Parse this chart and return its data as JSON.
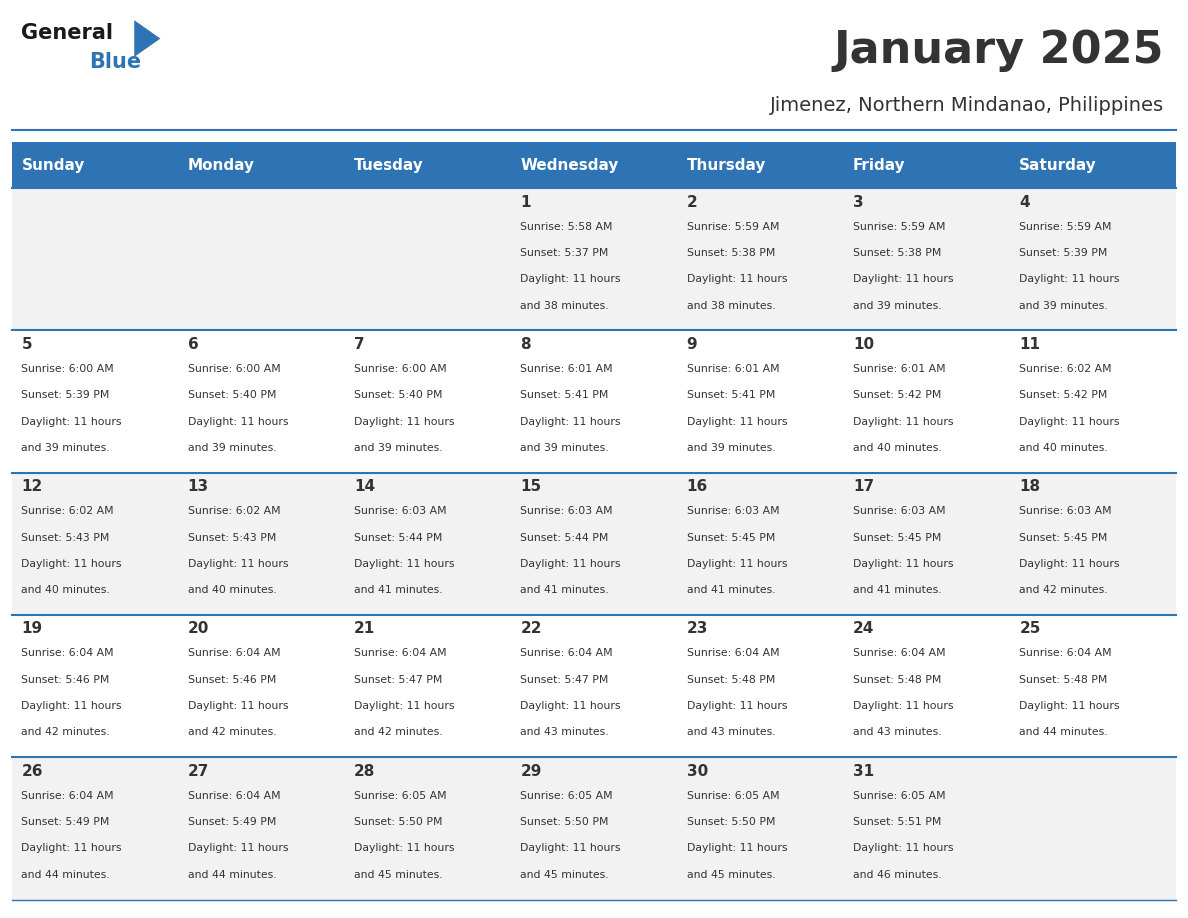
{
  "title": "January 2025",
  "subtitle": "Jimenez, Northern Mindanao, Philippines",
  "header_bg": "#2E74B5",
  "header_text_color": "#FFFFFF",
  "day_names": [
    "Sunday",
    "Monday",
    "Tuesday",
    "Wednesday",
    "Thursday",
    "Friday",
    "Saturday"
  ],
  "row_bg_even": "#F2F2F2",
  "row_bg_odd": "#FFFFFF",
  "cell_border_color": "#2E74B5",
  "day_num_color": "#333333",
  "info_color": "#333333",
  "logo_general_color": "#1a1a1a",
  "logo_blue_color": "#2E74B5",
  "calendar": [
    [
      null,
      null,
      null,
      {
        "day": 1,
        "sunrise": "5:58 AM",
        "sunset": "5:37 PM",
        "daylight": "11 hours and 38 minutes"
      },
      {
        "day": 2,
        "sunrise": "5:59 AM",
        "sunset": "5:38 PM",
        "daylight": "11 hours and 38 minutes"
      },
      {
        "day": 3,
        "sunrise": "5:59 AM",
        "sunset": "5:38 PM",
        "daylight": "11 hours and 39 minutes"
      },
      {
        "day": 4,
        "sunrise": "5:59 AM",
        "sunset": "5:39 PM",
        "daylight": "11 hours and 39 minutes"
      }
    ],
    [
      {
        "day": 5,
        "sunrise": "6:00 AM",
        "sunset": "5:39 PM",
        "daylight": "11 hours and 39 minutes"
      },
      {
        "day": 6,
        "sunrise": "6:00 AM",
        "sunset": "5:40 PM",
        "daylight": "11 hours and 39 minutes"
      },
      {
        "day": 7,
        "sunrise": "6:00 AM",
        "sunset": "5:40 PM",
        "daylight": "11 hours and 39 minutes"
      },
      {
        "day": 8,
        "sunrise": "6:01 AM",
        "sunset": "5:41 PM",
        "daylight": "11 hours and 39 minutes"
      },
      {
        "day": 9,
        "sunrise": "6:01 AM",
        "sunset": "5:41 PM",
        "daylight": "11 hours and 39 minutes"
      },
      {
        "day": 10,
        "sunrise": "6:01 AM",
        "sunset": "5:42 PM",
        "daylight": "11 hours and 40 minutes"
      },
      {
        "day": 11,
        "sunrise": "6:02 AM",
        "sunset": "5:42 PM",
        "daylight": "11 hours and 40 minutes"
      }
    ],
    [
      {
        "day": 12,
        "sunrise": "6:02 AM",
        "sunset": "5:43 PM",
        "daylight": "11 hours and 40 minutes"
      },
      {
        "day": 13,
        "sunrise": "6:02 AM",
        "sunset": "5:43 PM",
        "daylight": "11 hours and 40 minutes"
      },
      {
        "day": 14,
        "sunrise": "6:03 AM",
        "sunset": "5:44 PM",
        "daylight": "11 hours and 41 minutes"
      },
      {
        "day": 15,
        "sunrise": "6:03 AM",
        "sunset": "5:44 PM",
        "daylight": "11 hours and 41 minutes"
      },
      {
        "day": 16,
        "sunrise": "6:03 AM",
        "sunset": "5:45 PM",
        "daylight": "11 hours and 41 minutes"
      },
      {
        "day": 17,
        "sunrise": "6:03 AM",
        "sunset": "5:45 PM",
        "daylight": "11 hours and 41 minutes"
      },
      {
        "day": 18,
        "sunrise": "6:03 AM",
        "sunset": "5:45 PM",
        "daylight": "11 hours and 42 minutes"
      }
    ],
    [
      {
        "day": 19,
        "sunrise": "6:04 AM",
        "sunset": "5:46 PM",
        "daylight": "11 hours and 42 minutes"
      },
      {
        "day": 20,
        "sunrise": "6:04 AM",
        "sunset": "5:46 PM",
        "daylight": "11 hours and 42 minutes"
      },
      {
        "day": 21,
        "sunrise": "6:04 AM",
        "sunset": "5:47 PM",
        "daylight": "11 hours and 42 minutes"
      },
      {
        "day": 22,
        "sunrise": "6:04 AM",
        "sunset": "5:47 PM",
        "daylight": "11 hours and 43 minutes"
      },
      {
        "day": 23,
        "sunrise": "6:04 AM",
        "sunset": "5:48 PM",
        "daylight": "11 hours and 43 minutes"
      },
      {
        "day": 24,
        "sunrise": "6:04 AM",
        "sunset": "5:48 PM",
        "daylight": "11 hours and 43 minutes"
      },
      {
        "day": 25,
        "sunrise": "6:04 AM",
        "sunset": "5:48 PM",
        "daylight": "11 hours and 44 minutes"
      }
    ],
    [
      {
        "day": 26,
        "sunrise": "6:04 AM",
        "sunset": "5:49 PM",
        "daylight": "11 hours and 44 minutes"
      },
      {
        "day": 27,
        "sunrise": "6:04 AM",
        "sunset": "5:49 PM",
        "daylight": "11 hours and 44 minutes"
      },
      {
        "day": 28,
        "sunrise": "6:05 AM",
        "sunset": "5:50 PM",
        "daylight": "11 hours and 45 minutes"
      },
      {
        "day": 29,
        "sunrise": "6:05 AM",
        "sunset": "5:50 PM",
        "daylight": "11 hours and 45 minutes"
      },
      {
        "day": 30,
        "sunrise": "6:05 AM",
        "sunset": "5:50 PM",
        "daylight": "11 hours and 45 minutes"
      },
      {
        "day": 31,
        "sunrise": "6:05 AM",
        "sunset": "5:51 PM",
        "daylight": "11 hours and 46 minutes"
      },
      null
    ]
  ]
}
